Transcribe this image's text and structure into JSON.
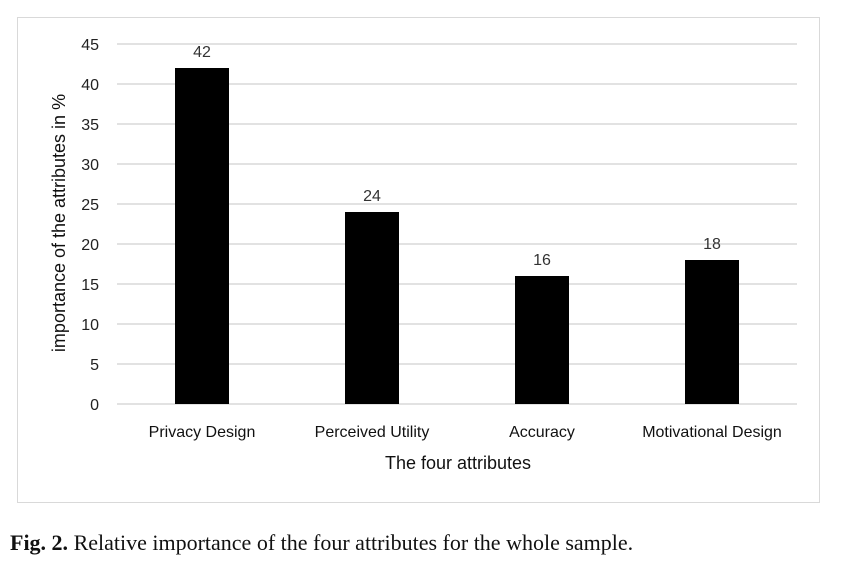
{
  "chart_data": {
    "type": "bar",
    "categories": [
      "Privacy Design",
      "Perceived Utility",
      "Accuracy",
      "Motivational Design"
    ],
    "values": [
      42,
      24,
      16,
      18
    ],
    "data_labels": [
      "42",
      "24",
      "16",
      "18"
    ],
    "xlabel": "The four attributes",
    "ylabel": "importance of the attributes in %",
    "ylim": [
      0,
      45
    ],
    "yticks": [
      0,
      5,
      10,
      15,
      20,
      25,
      30,
      35,
      40,
      45
    ],
    "grid": true,
    "legend": "none",
    "bar_color": "#000000",
    "grid_color": "#d9d9d9"
  },
  "caption": {
    "prefix": "Fig. 2.",
    "text": " Relative importance of the four attributes for the whole sample."
  }
}
